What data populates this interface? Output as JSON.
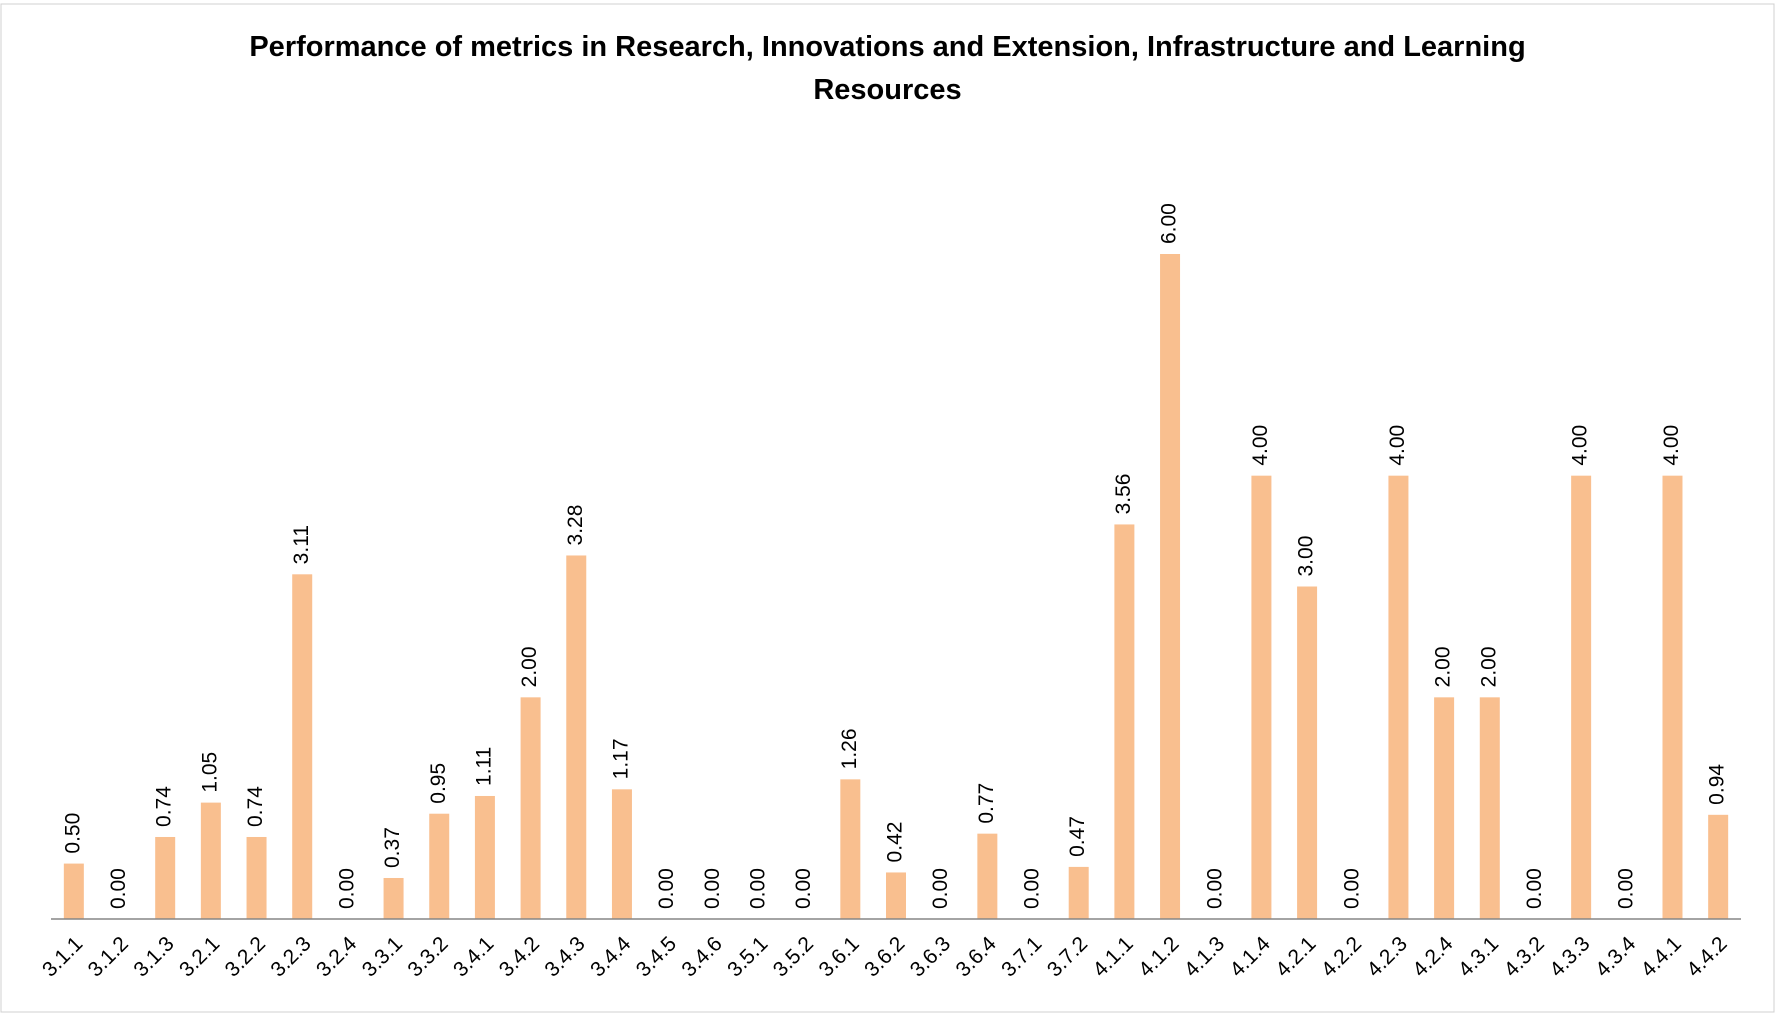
{
  "chart_data": {
    "type": "bar",
    "title": "Performance of metrics in Research, Innovations and Extension, Infrastructure and Learning Resources",
    "categories": [
      "3.1.1",
      "3.1.2",
      "3.1.3",
      "3.2.1",
      "3.2.2",
      "3.2.3",
      "3.2.4",
      "3.3.1",
      "3.3.2",
      "3.4.1",
      "3.4.2",
      "3.4.3",
      "3.4.4",
      "3.4.5",
      "3.4.6",
      "3.5.1",
      "3.5.2",
      "3.6.1",
      "3.6.2",
      "3.6.3",
      "3.6.4",
      "3.7.1",
      "3.7.2",
      "4.1.1",
      "4.1.2",
      "4.1.3",
      "4.1.4",
      "4.2.1",
      "4.2.2",
      "4.2.3",
      "4.2.4",
      "4.3.1",
      "4.3.2",
      "4.3.3",
      "4.3.4",
      "4.4.1",
      "4.4.2"
    ],
    "values": [
      0.5,
      0,
      0.74,
      1.05,
      0.74,
      3.11,
      0,
      0.37,
      0.95,
      1.11,
      2,
      3.28,
      1.17,
      0,
      0,
      0,
      0,
      1.26,
      0.42,
      0,
      0.77,
      0,
      0.47,
      3.56,
      6,
      0,
      4,
      3,
      0,
      4,
      2,
      2,
      0,
      4,
      0,
      4,
      0.94
    ],
    "value_labels": [
      "0.50",
      "0.00",
      "0.74",
      "1.05",
      "0.74",
      "3.11",
      "0.00",
      "0.37",
      "0.95",
      "1.11",
      "2.00",
      "3.28",
      "1.17",
      "0.00",
      "0.00",
      "0.00",
      "0.00",
      "1.26",
      "0.42",
      "0.00",
      "0.77",
      "0.00",
      "0.47",
      "3.56",
      "6.00",
      "0.00",
      "4.00",
      "3.00",
      "0.00",
      "4.00",
      "2.00",
      "2.00",
      "0.00",
      "4.00",
      "0.00",
      "4.00",
      "0.94"
    ],
    "color": "#f9bf8f"
  }
}
